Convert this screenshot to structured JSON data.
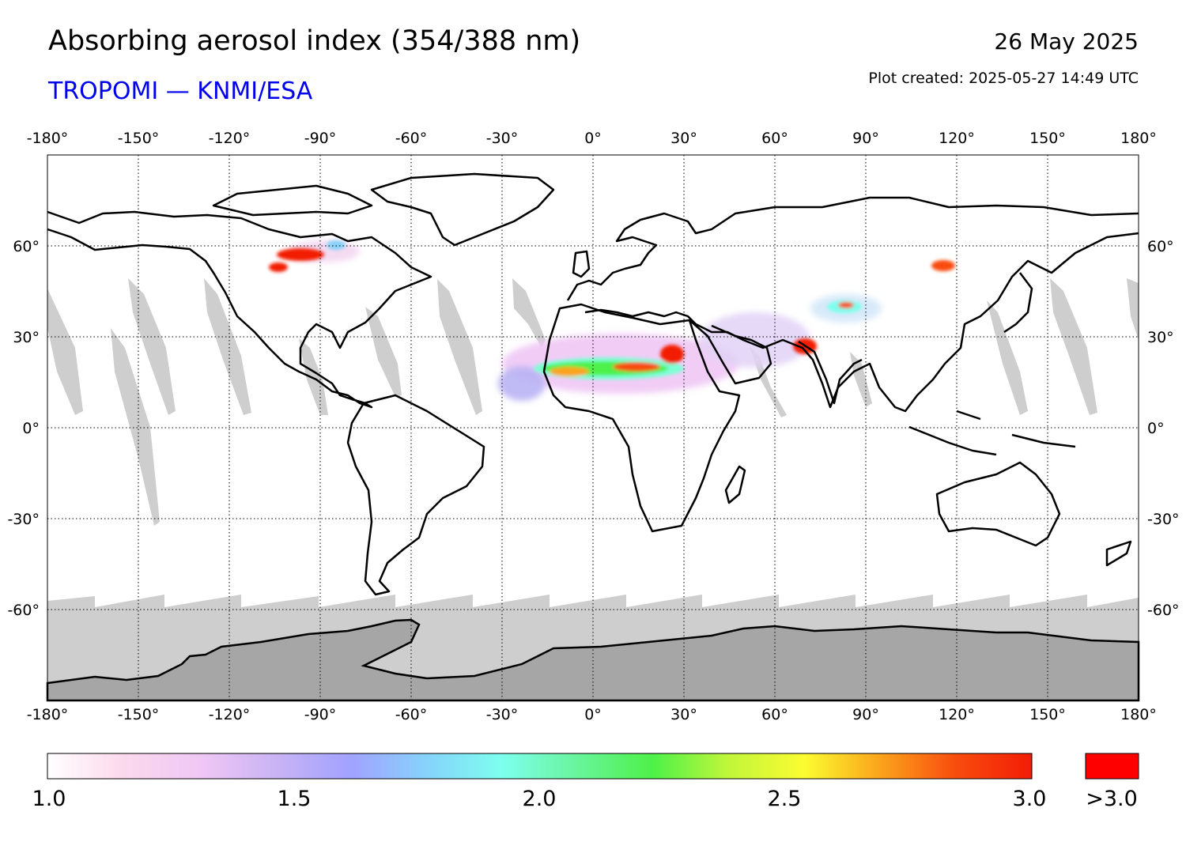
{
  "header": {
    "title": "Absorbing aerosol index (354/388 nm)",
    "subtitle": "TROPOMI — KNMI/ESA",
    "date": "26 May 2025",
    "plot_created": "Plot created: 2025-05-27 14:49 UTC"
  },
  "colors": {
    "subtitle": "#0000ee",
    "no_data": "#cecece",
    "antarctica": "#a6a6a6",
    "coastline": "#000000",
    "over_range": "#ff0000"
  },
  "map": {
    "lon_ticks": [
      "-180°",
      "-150°",
      "-120°",
      "-90°",
      "-60°",
      "-30°",
      "0°",
      "30°",
      "60°",
      "90°",
      "120°",
      "150°",
      "180°"
    ],
    "lat_ticks": [
      "60°",
      "30°",
      "0°",
      "-30°",
      "-60°"
    ],
    "lon_range": [
      -180,
      180
    ],
    "lat_range": [
      -90,
      90
    ],
    "grid": "dotted"
  },
  "colorbar": {
    "min": 1.0,
    "max": 3.0,
    "labels": [
      "1.0",
      "1.5",
      "2.0",
      "2.5",
      "3.0"
    ],
    "over_label": ">3.0",
    "stops": [
      "#ffffff",
      "#fbd9ec",
      "#f0c8f5",
      "#c9b4f4",
      "#a2a2ff",
      "#86d2fb",
      "#7dffee",
      "#68f49b",
      "#4ef148",
      "#c2f63a",
      "#fbfc31",
      "#fba31c",
      "#f84c0e",
      "#f21d05"
    ]
  }
}
